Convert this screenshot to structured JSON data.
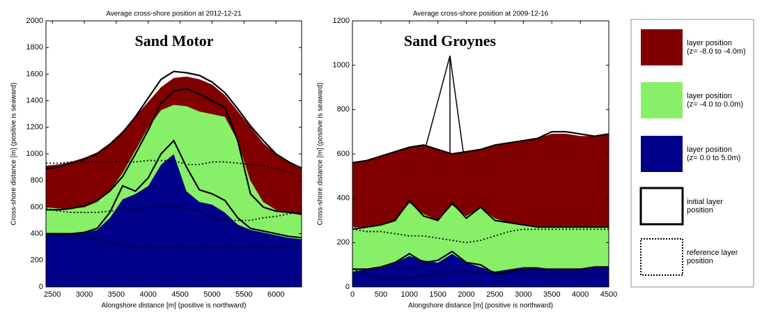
{
  "chart_data": [
    {
      "type": "area",
      "title": "Average cross-shore position at 2012-12-21",
      "annotation": "Sand Motor",
      "xlabel": "Alongshore distance [m] (positive is northward)",
      "ylabel": "Cross-shore distance [m] (positive is seaward)",
      "xlim": [
        2400,
        6400
      ],
      "xticks": [
        2500,
        3000,
        3500,
        4000,
        4500,
        5000,
        5500,
        6000
      ],
      "ylim": [
        0,
        2000
      ],
      "yticks": [
        0,
        200,
        400,
        600,
        800,
        1000,
        1200,
        1400,
        1600,
        1800,
        2000
      ],
      "x": [
        2400,
        2600,
        2800,
        3000,
        3200,
        3400,
        3600,
        3800,
        4000,
        4200,
        4400,
        4600,
        4800,
        5000,
        5200,
        5400,
        5600,
        5800,
        6000,
        6200,
        6400
      ],
      "series": [
        {
          "color": "#000088",
          "values": [
            400,
            400,
            400,
            410,
            430,
            520,
            660,
            700,
            760,
            920,
            1000,
            720,
            640,
            620,
            560,
            470,
            430,
            410,
            390,
            370,
            360
          ]
        },
        {
          "color": "#88f068",
          "values": [
            600,
            590,
            590,
            600,
            640,
            720,
            860,
            1030,
            1200,
            1330,
            1370,
            1360,
            1320,
            1300,
            1280,
            1100,
            800,
            640,
            580,
            560,
            540
          ]
        },
        {
          "color": "#800000",
          "values": [
            910,
            920,
            940,
            970,
            1010,
            1080,
            1170,
            1280,
            1390,
            1500,
            1570,
            1580,
            1560,
            1520,
            1440,
            1320,
            1200,
            1080,
            1000,
            940,
            900
          ]
        }
      ],
      "initial": [
        [
          890,
          900,
          930,
          960,
          1000,
          1070,
          1160,
          1280,
          1420,
          1560,
          1620,
          1610,
          1590,
          1540,
          1460,
          1340,
          1210,
          1100,
          1000,
          940,
          890
        ],
        [
          580,
          580,
          590,
          610,
          650,
          720,
          830,
          1000,
          1180,
          1380,
          1470,
          1490,
          1450,
          1400,
          1350,
          1100,
          700,
          600,
          570,
          560,
          550
        ],
        [
          400,
          400,
          400,
          410,
          440,
          560,
          760,
          720,
          820,
          1000,
          1100,
          900,
          730,
          700,
          650,
          520,
          440,
          420,
          400,
          380,
          370
        ]
      ],
      "reference": [
        [
          930,
          930,
          940,
          940,
          940,
          940,
          940,
          940,
          950,
          950,
          950,
          920,
          920,
          940,
          940,
          930,
          920,
          910,
          890,
          860,
          830
        ],
        [
          590,
          570,
          560,
          560,
          560,
          570,
          580,
          590,
          600,
          610,
          600,
          590,
          570,
          520,
          500,
          500,
          500,
          520,
          530,
          550,
          560
        ],
        [
          400,
          390,
          380,
          370,
          360,
          330,
          310,
          300,
          300,
          300,
          300,
          300,
          300,
          300,
          300,
          300,
          300,
          300,
          300,
          300,
          310
        ]
      ]
    },
    {
      "type": "area",
      "title": "Average cross-shore position at 2009-12-16",
      "annotation": "Sand Groynes",
      "xlabel": "Alongshore distance [m] (positive is northward)",
      "ylabel": "Cross-shore distance [m] (positive is seaward)",
      "xlim": [
        0,
        4500
      ],
      "xticks": [
        0,
        500,
        1000,
        1500,
        2000,
        2500,
        3000,
        3500,
        4000,
        4500
      ],
      "ylim": [
        0,
        1200
      ],
      "yticks": [
        0,
        200,
        400,
        600,
        800,
        1000,
        1200
      ],
      "x": [
        0,
        250,
        500,
        750,
        1000,
        1250,
        1500,
        1750,
        2000,
        2250,
        2500,
        2750,
        3000,
        3250,
        3500,
        3750,
        4000,
        4250,
        4500
      ],
      "series": [
        {
          "color": "#000088",
          "values": [
            70,
            80,
            90,
            110,
            140,
            120,
            110,
            150,
            110,
            90,
            70,
            80,
            90,
            90,
            80,
            80,
            80,
            90,
            90
          ]
        },
        {
          "color": "#88f068",
          "values": [
            270,
            270,
            280,
            300,
            380,
            330,
            300,
            370,
            320,
            360,
            310,
            290,
            280,
            270,
            270,
            270,
            270,
            270,
            270
          ]
        },
        {
          "color": "#800000",
          "values": [
            560,
            570,
            590,
            610,
            630,
            640,
            620,
            600,
            610,
            620,
            640,
            650,
            660,
            670,
            690,
            690,
            680,
            680,
            690
          ]
        }
      ],
      "initial": [
        [
          560,
          570,
          590,
          610,
          630,
          640,
          620,
          600,
          610,
          620,
          640,
          650,
          660,
          670,
          700,
          700,
          690,
          680,
          690
        ],
        [
          260,
          270,
          280,
          300,
          390,
          320,
          300,
          380,
          310,
          360,
          300,
          290,
          280,
          270,
          270,
          270,
          270,
          270,
          270
        ],
        [
          80,
          80,
          90,
          110,
          150,
          110,
          120,
          160,
          110,
          100,
          60,
          70,
          80,
          80,
          80,
          80,
          80,
          90,
          90
        ]
      ],
      "reference": [
        [
          260,
          250,
          250,
          240,
          230,
          230,
          220,
          210,
          200,
          210,
          230,
          250,
          260,
          260,
          260,
          260,
          260,
          260,
          260
        ],
        [
          80,
          60,
          40,
          30,
          40,
          50,
          60,
          70,
          70,
          60,
          60,
          60,
          60,
          60,
          60,
          60,
          60,
          60,
          60
        ]
      ]
    }
  ],
  "legend": [
    {
      "lines": [
        "layer position",
        "(z= -8.0 to -4.0m)"
      ],
      "color": "#800000"
    },
    {
      "lines": [
        "layer position",
        "(z= -4.0 to 0.0m)"
      ],
      "color": "#88f068"
    },
    {
      "lines": [
        "layer position",
        "(z= 0.0 to 5.0m)"
      ],
      "color": "#000088"
    },
    {
      "lines": [
        "initial layer",
        "position"
      ],
      "line": "solid"
    },
    {
      "lines": [
        "reference layer",
        "position"
      ],
      "line": "dotted"
    }
  ]
}
